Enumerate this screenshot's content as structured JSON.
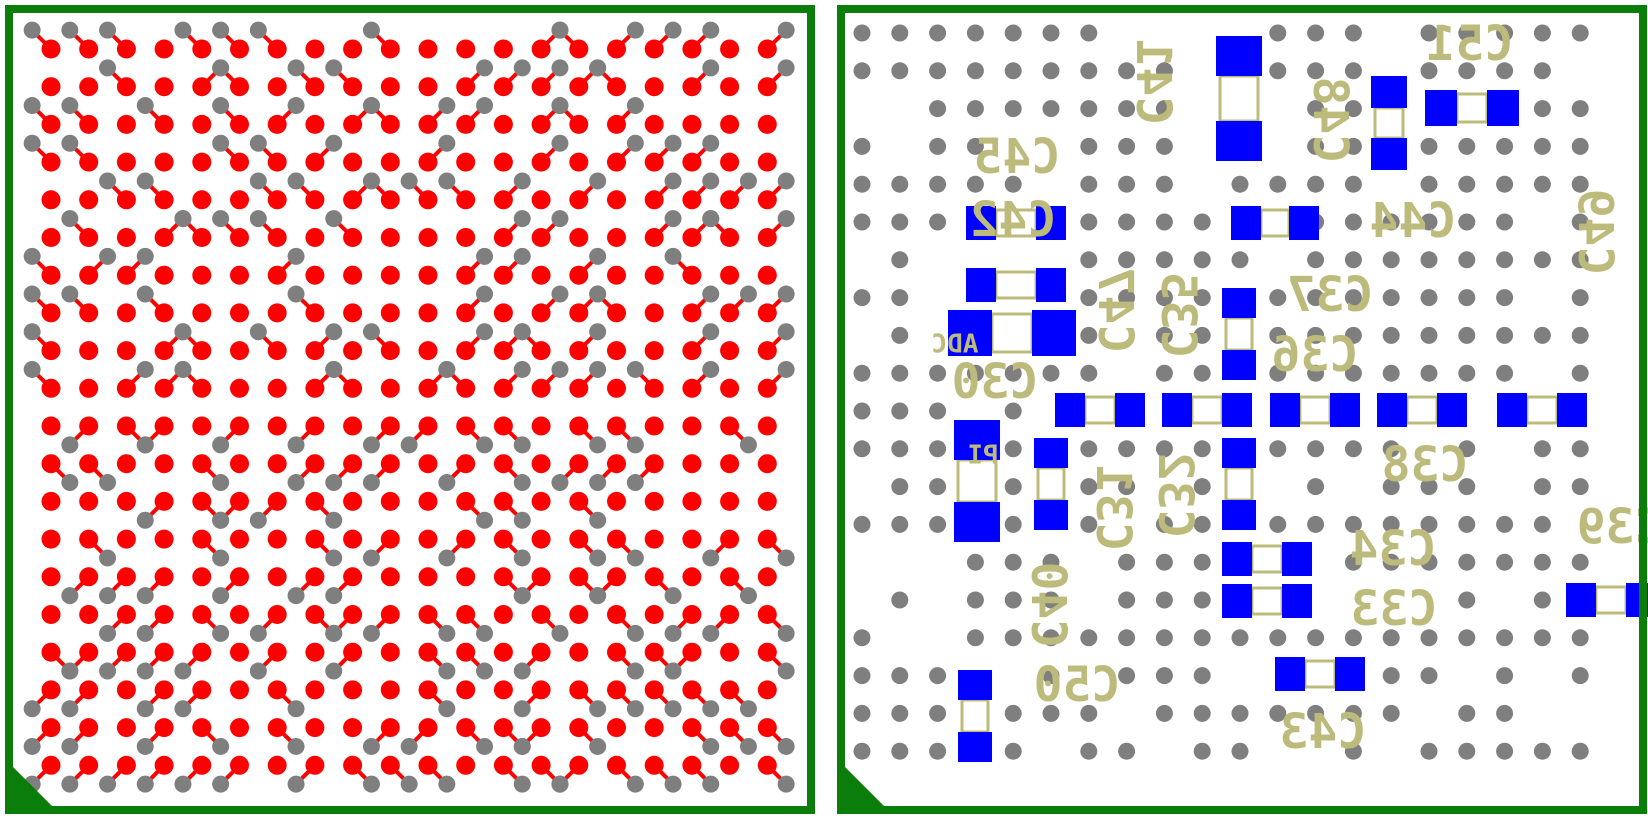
{
  "board": {
    "colors": {
      "background": "#ffffff",
      "outline": "#0a7d0a",
      "pad_top": "#ff0000",
      "via": "#7f7f7f",
      "pad_bottom": "#0000ff",
      "silkscreen": "#bdbb7c"
    },
    "views": [
      {
        "name": "top-layer-bga-fanout"
      },
      {
        "name": "bottom-layer-decoupling-capacitors"
      }
    ]
  },
  "labels": {
    "c41": "C41",
    "c48": "C48",
    "c51": "C51",
    "c45": "C45",
    "c42": "C42",
    "c44": "C44",
    "c49": "C49",
    "c47": "C47",
    "c35": "C35",
    "c37": "C37",
    "c36": "C36",
    "adc": "ADC",
    "c30": "C30",
    "pi": "PI",
    "c31": "C31",
    "c32": "C32",
    "c38": "C38",
    "c39": "C39",
    "c34": "C34",
    "c33": "C33",
    "c40": "C40",
    "c50": "C50",
    "c43": "C43"
  }
}
